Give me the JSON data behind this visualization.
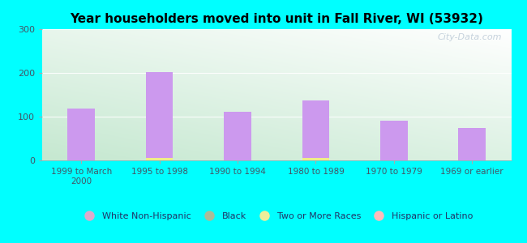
{
  "title": "Year householders moved into unit in Fall River, WI (53932)",
  "categories": [
    "1999 to March\n2000",
    "1995 to 1998",
    "1990 to 1994",
    "1980 to 1989",
    "1970 to 1979",
    "1969 or earlier"
  ],
  "series": [
    {
      "label": "White Non-Hispanic",
      "color": "#cc99ee",
      "values": [
        118,
        201,
        111,
        137,
        90,
        74
      ]
    },
    {
      "label": "Black",
      "color": "#aabb88",
      "values": [
        0,
        5,
        0,
        0,
        0,
        0
      ]
    },
    {
      "label": "Two or More Races",
      "color": "#eeee88",
      "values": [
        0,
        6,
        0,
        5,
        0,
        0
      ]
    },
    {
      "label": "Hispanic or Latino",
      "color": "#ffaaaa",
      "values": [
        0,
        0,
        0,
        0,
        0,
        0
      ]
    }
  ],
  "legend_colors": [
    "#ddaacc",
    "#aabb99",
    "#eeee99",
    "#ffbbbb"
  ],
  "ylim": [
    0,
    300
  ],
  "yticks": [
    0,
    100,
    200,
    300
  ],
  "bg_outer": "#00ffff",
  "grad_colors": [
    "#c5e8d0",
    "#e8f5ef",
    "#f5faf8",
    "#ffffff"
  ],
  "watermark": "City-Data.com",
  "bar_width": 0.35
}
